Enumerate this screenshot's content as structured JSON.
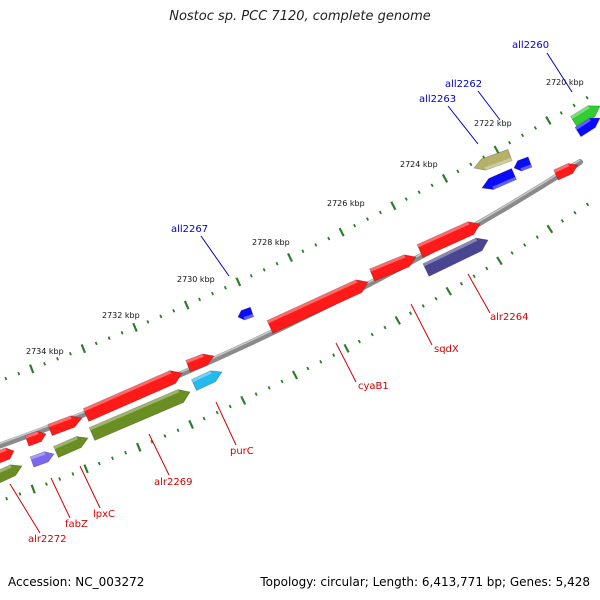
{
  "title": "Nostoc sp. PCC 7120, complete genome",
  "accession": "Accession: NC_003272",
  "summary": "Topology: circular; Length: 6,413,771 bp; Genes: 5,428",
  "colors": {
    "backbone": "#8a8a8a",
    "tick": "#2e7d2e",
    "label_forward": "#d40000",
    "label_reverse": "#0000cc",
    "red": "#ff1a1a",
    "blue": "#0a0aff",
    "olive": "#6b8e23",
    "khaki": "#b5b06a",
    "green": "#33cc33",
    "navy": "#4a4590",
    "cyan": "#22bbee",
    "violet": "#7b68ee"
  },
  "tick_labels": [
    {
      "text": "2720 kbp"
    },
    {
      "text": "2722 kbp"
    },
    {
      "text": "2724 kbp"
    },
    {
      "text": "2726 kbp"
    },
    {
      "text": "2728 kbp"
    },
    {
      "text": "2730 kbp"
    },
    {
      "text": "2732 kbp"
    },
    {
      "text": "2734 kbp"
    }
  ],
  "gene_labels": [
    {
      "text": "all2260",
      "strand": "reverse"
    },
    {
      "text": "all2262",
      "strand": "reverse"
    },
    {
      "text": "all2263",
      "strand": "reverse"
    },
    {
      "text": "all2267",
      "strand": "reverse"
    },
    {
      "text": "alr2264",
      "strand": "forward"
    },
    {
      "text": "sqdX",
      "strand": "forward"
    },
    {
      "text": "cyaB1",
      "strand": "forward"
    },
    {
      "text": "purC",
      "strand": "forward"
    },
    {
      "text": "alr2269",
      "strand": "forward"
    },
    {
      "text": "lpxC",
      "strand": "forward"
    },
    {
      "text": "fabZ",
      "strand": "forward"
    },
    {
      "text": "alr2272",
      "strand": "forward"
    }
  ]
}
